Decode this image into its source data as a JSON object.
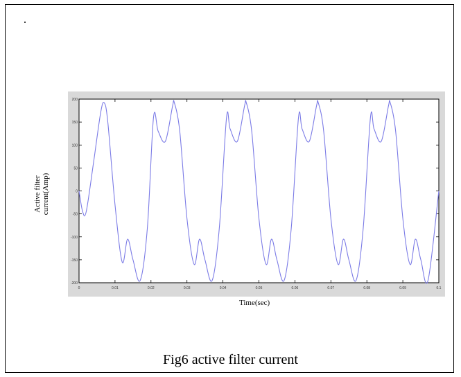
{
  "page": {
    "marker": ".",
    "caption": "Fig6 active filter current"
  },
  "chart_data": {
    "type": "line",
    "title": "",
    "xlabel": "Time(sec)",
    "ylabel_lines": [
      "Active filter",
      "current(Amp)"
    ],
    "xlim": [
      0,
      0.1
    ],
    "ylim": [
      -200,
      200
    ],
    "xticks": [
      "0",
      "0.01",
      "0.02",
      "0.03",
      "0.04",
      "0.05",
      "0.06",
      "0.07",
      "0.08",
      "0.09",
      "0.1"
    ],
    "yticks": [
      "200",
      "150",
      "100",
      "50",
      "0",
      "-50",
      "-100",
      "-150",
      "-200"
    ],
    "grid": false,
    "line_color": "#7b7be6",
    "series": [
      {
        "x": [
          0,
          0.001,
          0.002,
          0.004,
          0.006,
          0.007,
          0.008,
          0.01,
          0.012,
          0.0135,
          0.015,
          0.017,
          0.019,
          0.0207,
          0.022,
          0.024,
          0.026,
          0.0265,
          0.028,
          0.03,
          0.032,
          0.0335,
          0.035,
          0.037,
          0.039,
          0.041,
          0.042,
          0.044,
          0.046,
          0.0465,
          0.048,
          0.05,
          0.052,
          0.0535,
          0.055,
          0.057,
          0.059,
          0.061,
          0.062,
          0.064,
          0.066,
          0.0665,
          0.068,
          0.07,
          0.072,
          0.0735,
          0.075,
          0.077,
          0.079,
          0.081,
          0.082,
          0.084,
          0.086,
          0.0865,
          0.088,
          0.09,
          0.092,
          0.0935,
          0.095,
          0.097,
          0.1
        ],
        "y": [
          0,
          -45,
          -45,
          60,
          170,
          192,
          150,
          -30,
          -155,
          -105,
          -150,
          -195,
          -80,
          160,
          130,
          108,
          185,
          192,
          130,
          -60,
          -160,
          -105,
          -150,
          -195,
          -80,
          160,
          135,
          108,
          185,
          192,
          130,
          -60,
          -160,
          -105,
          -150,
          -195,
          -80,
          160,
          135,
          108,
          185,
          192,
          130,
          -60,
          -160,
          -105,
          -150,
          -195,
          -80,
          160,
          135,
          108,
          185,
          192,
          130,
          -60,
          -160,
          -105,
          -150,
          -195,
          0
        ]
      }
    ]
  }
}
